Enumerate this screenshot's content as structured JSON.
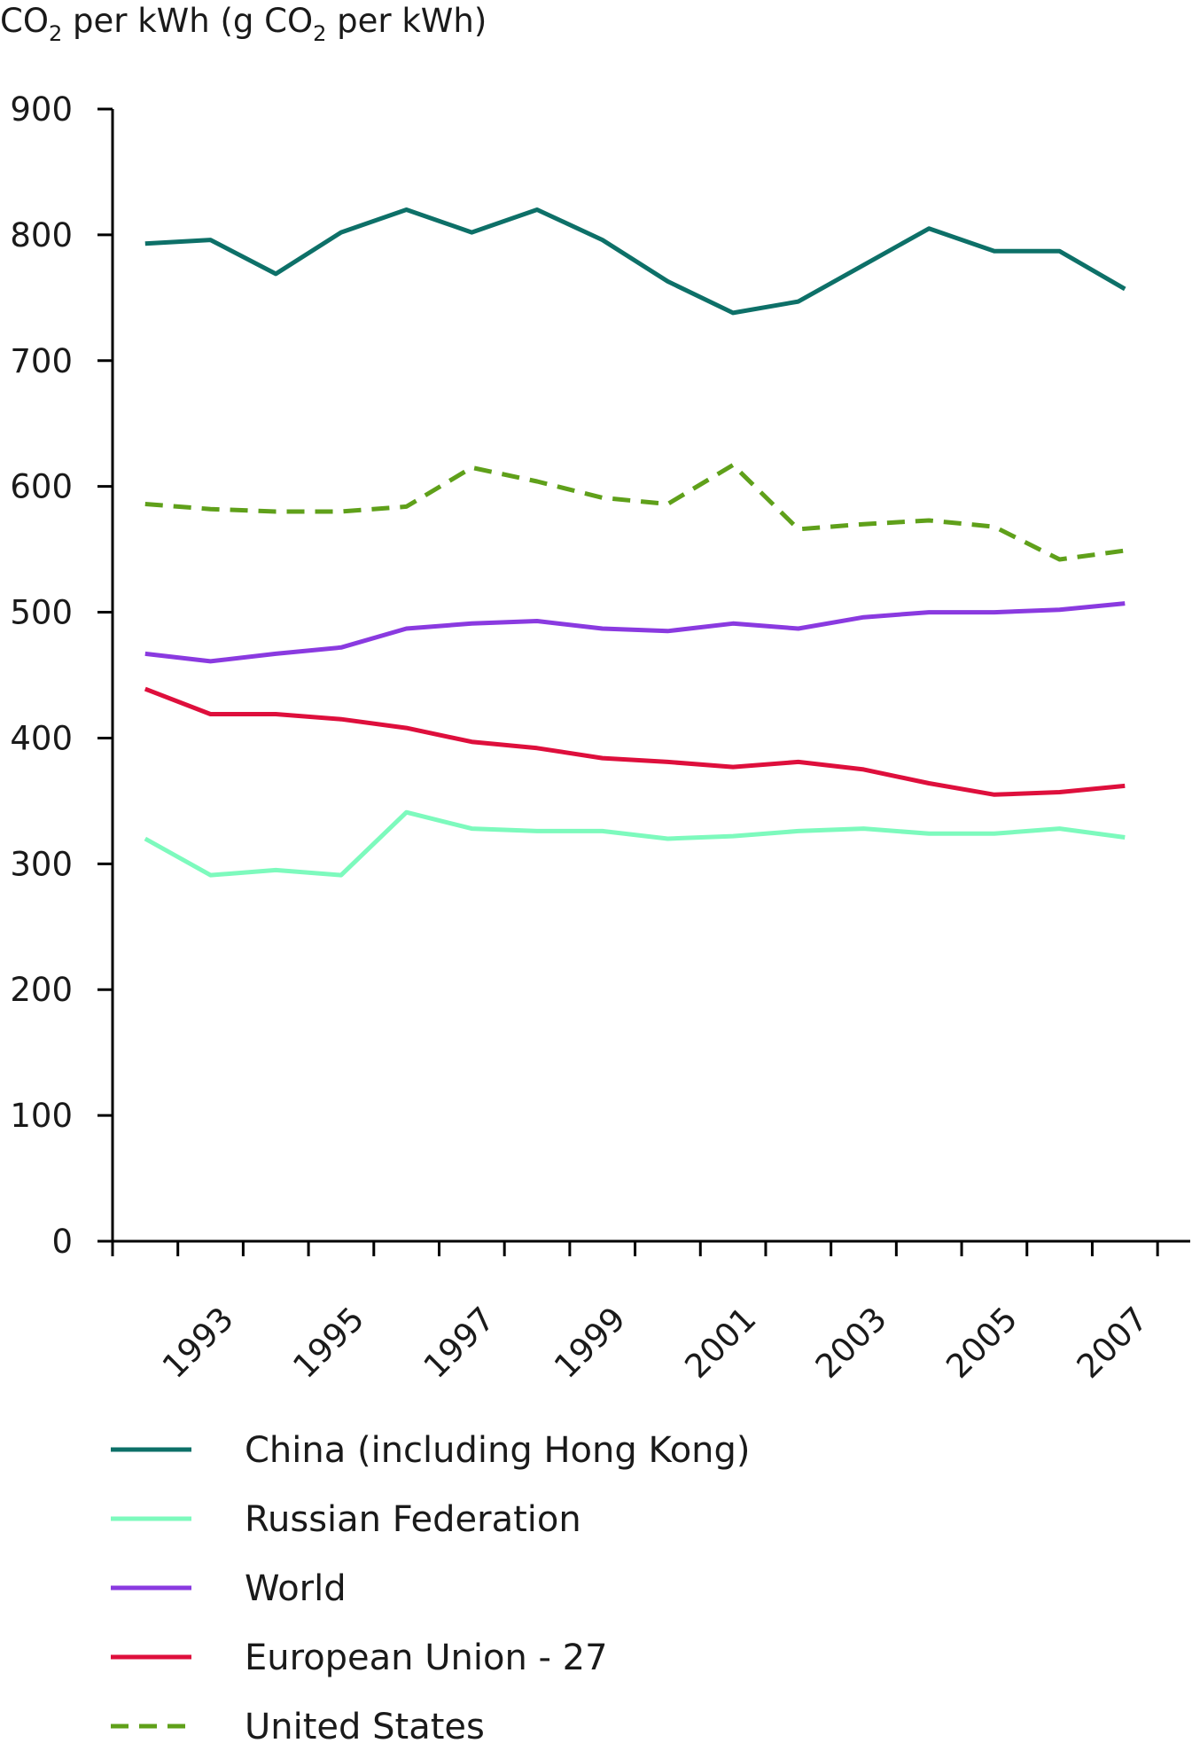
{
  "chart_data": {
    "type": "line",
    "ylabel_parts": [
      "CO",
      "2",
      " per kWh (g CO",
      "2",
      " per kWh)"
    ],
    "ylabel": "CO2 per kWh (g CO2 per kWh)",
    "x": [
      1992,
      1993,
      1994,
      1995,
      1996,
      1997,
      1998,
      1999,
      2000,
      2001,
      2002,
      2003,
      2004,
      2005,
      2006,
      2007
    ],
    "xticks": [
      "1993",
      "1995",
      "1997",
      "1999",
      "2001",
      "2003",
      "2005",
      "2007"
    ],
    "yticks": [
      "0",
      "100",
      "200",
      "300",
      "400",
      "500",
      "600",
      "700",
      "800",
      "900"
    ],
    "ylim": [
      0,
      900
    ],
    "grid": false,
    "legend_position": "bottom",
    "series": [
      {
        "name": "China (including Hong Kong)",
        "color": "#0d7068",
        "dashed": false,
        "values": [
          793,
          796,
          769,
          802,
          820,
          802,
          820,
          796,
          763,
          738,
          747,
          776,
          805,
          787,
          787,
          757
        ]
      },
      {
        "name": "Russian Federation",
        "color": "#7dfabd",
        "dashed": false,
        "values": [
          320,
          291,
          295,
          291,
          341,
          328,
          326,
          326,
          320,
          322,
          326,
          328,
          324,
          324,
          328,
          321
        ]
      },
      {
        "name": "World",
        "color": "#8a3ae0",
        "dashed": false,
        "values": [
          467,
          461,
          467,
          472,
          487,
          491,
          493,
          487,
          485,
          491,
          487,
          496,
          500,
          500,
          502,
          507
        ]
      },
      {
        "name": "European Union - 27",
        "color": "#de0f3c",
        "dashed": false,
        "values": [
          439,
          419,
          419,
          415,
          408,
          397,
          392,
          384,
          381,
          377,
          381,
          375,
          364,
          355,
          357,
          362
        ]
      },
      {
        "name": "United States",
        "color": "#5fa01a",
        "dashed": true,
        "values": [
          586,
          582,
          580,
          580,
          584,
          615,
          604,
          591,
          586,
          617,
          566,
          570,
          573,
          568,
          542,
          549
        ]
      }
    ]
  }
}
